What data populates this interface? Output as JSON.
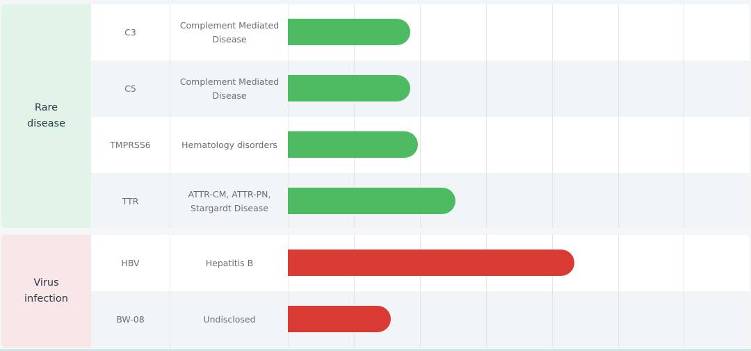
{
  "chart_data": {
    "type": "bar",
    "orientation": "horizontal",
    "x_unit": "phase columns",
    "xlim": [
      0,
      7
    ],
    "groups": [
      {
        "name": "Rare disease",
        "color": "#4cbb62",
        "bg": "#e2f4e8",
        "rows": [
          {
            "target": "C3",
            "indication": "Complement Mediated Disease",
            "value": 1.85
          },
          {
            "target": "C5",
            "indication": "Complement Mediated Disease",
            "value": 1.85
          },
          {
            "target": "TMPRSS6",
            "indication": "Hematology disorders",
            "value": 1.97
          },
          {
            "target": "TTR",
            "indication": "ATTR-CM, ATTR-PN, Stargardt Disease",
            "value": 2.54
          }
        ]
      },
      {
        "name": "Virus infection",
        "color": "#d93b34",
        "bg": "#f9e6e6",
        "rows": [
          {
            "target": "HBV",
            "indication": "Hepatitis B",
            "value": 4.34
          },
          {
            "target": "BW-08",
            "indication": "Undisclosed",
            "value": 1.56
          }
        ]
      }
    ]
  }
}
